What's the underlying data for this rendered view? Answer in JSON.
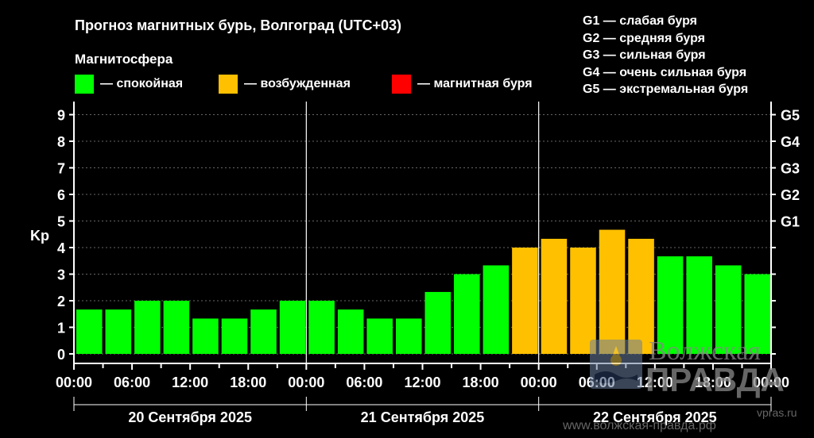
{
  "title": "Прогноз магнитных бурь, Волгоград (UTC+03)",
  "subtitle": "Магнитосфера",
  "legend": [
    {
      "label": "— спокойная",
      "color": "#00ff00"
    },
    {
      "label": "— возбужденная",
      "color": "#ffc000"
    },
    {
      "label": "— магнитная буря",
      "color": "#ff0000"
    }
  ],
  "g_legend": [
    "G1 — слабая буря",
    "G2 — средняя буря",
    "G3 — сильная буря",
    "G4 — очень сильная буря",
    "G5 — экстремальная буря"
  ],
  "watermark": {
    "name_line1": "Волжская",
    "name_line2": "ПРАВДА",
    "site_short": "vpras.ru",
    "site_full": "www.волжская-правда.рф"
  },
  "chart_data": {
    "type": "bar",
    "ylabel": "Kp",
    "ylim": [
      0,
      9
    ],
    "yticks": [
      "0",
      "1",
      "2",
      "3",
      "4",
      "5",
      "6",
      "7",
      "8",
      "9"
    ],
    "right_ticks": [
      {
        "value": 5,
        "label": "G1"
      },
      {
        "value": 6,
        "label": "G2"
      },
      {
        "value": 7,
        "label": "G3"
      },
      {
        "value": 8,
        "label": "G4"
      },
      {
        "value": 9,
        "label": "G5"
      }
    ],
    "xtick_labels": [
      "00:00",
      "06:00",
      "12:00",
      "18:00",
      "00:00",
      "06:00",
      "12:00",
      "18:00",
      "00:00",
      "06:00",
      "12:00",
      "18:00",
      "00:00"
    ],
    "days": [
      "20 Сентября 2025",
      "21 Сентября 2025",
      "22 Сентября 2025"
    ],
    "values": [
      1.67,
      1.67,
      2.0,
      2.0,
      1.33,
      1.33,
      1.67,
      2.0,
      2.0,
      1.67,
      1.33,
      1.33,
      2.33,
      3.0,
      3.33,
      4.0,
      4.33,
      4.0,
      4.67,
      4.33,
      3.67,
      3.67,
      3.33,
      3.0
    ],
    "levels": [
      "quiet",
      "quiet",
      "quiet",
      "quiet",
      "quiet",
      "quiet",
      "quiet",
      "quiet",
      "quiet",
      "quiet",
      "quiet",
      "quiet",
      "quiet",
      "quiet",
      "quiet",
      "active",
      "active",
      "active",
      "active",
      "active",
      "quiet",
      "quiet",
      "quiet",
      "quiet"
    ],
    "level_colors": {
      "quiet": "#00ff00",
      "active": "#ffc000",
      "storm": "#ff0000"
    },
    "grid": true,
    "gridline_color": "#666666"
  }
}
